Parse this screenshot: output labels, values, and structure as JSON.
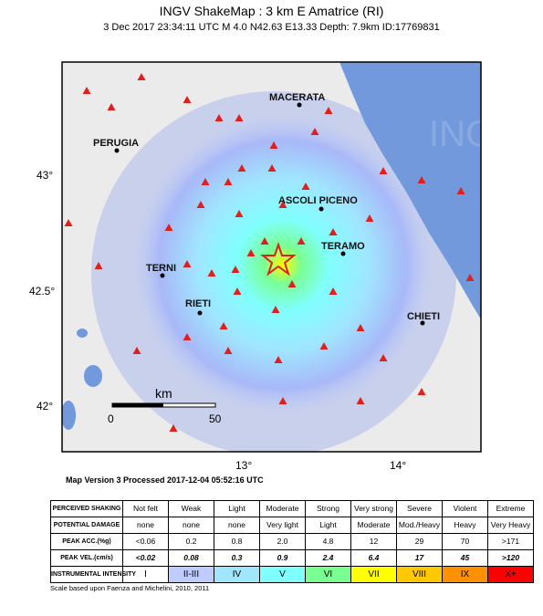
{
  "header": {
    "title": "INGV ShakeMap : 3 km E Amatrice (RI)",
    "subtitle": "3 Dec 2017 23:34:11 UTC   M 4.0   N42.63 E13.33   Depth: 7.9km   ID:17769831",
    "watermark": "INGV"
  },
  "map": {
    "cities": [
      "MACERATA",
      "PERUGIA",
      "ASCOLI PICENO",
      "TERAMO",
      "TERNI",
      "RIETI",
      "CHIETI"
    ],
    "lat_labels": [
      "43°",
      "42.5°",
      "42°"
    ],
    "lon_labels": [
      "13°",
      "14°"
    ],
    "scale": {
      "unit": "km",
      "start": "0",
      "end": "50"
    }
  },
  "table": {
    "rows": [
      {
        "label": "PERCEIVED SHAKING",
        "cells": [
          "Not felt",
          "Weak",
          "Light",
          "Moderate",
          "Strong",
          "Very strong",
          "Severe",
          "Violent",
          "Extreme"
        ]
      },
      {
        "label": "POTENTIAL DAMAGE",
        "cells": [
          "none",
          "none",
          "none",
          "Very light",
          "Light",
          "Moderate",
          "Mod./Heavy",
          "Heavy",
          "Very Heavy"
        ]
      },
      {
        "label": "PEAK ACC.(%g)",
        "cells": [
          "<0.06",
          "0.2",
          "0.8",
          "2.0",
          "4.8",
          "12",
          "29",
          "70",
          ">171"
        ]
      },
      {
        "label": "PEAK VEL.(cm/s)",
        "cells": [
          "<0.02",
          "0.08",
          "0.3",
          "0.9",
          "2.4",
          "6.4",
          "17",
          "45",
          ">120"
        ]
      },
      {
        "label": "INSTRUMENTAL INTENSITY",
        "cells": [
          "I",
          "II-III",
          "IV",
          "V",
          "VI",
          "VII",
          "VIII",
          "IX",
          "X+"
        ]
      }
    ],
    "intensity_colors": [
      "#ffffff",
      "#bfccff",
      "#a0e6ff",
      "#80ffff",
      "#7aff93",
      "#ffff00",
      "#ffc800",
      "#ff9100",
      "#ff0000"
    ]
  },
  "footer": {
    "version": "Map Version 3 Processed 2017-12-04 05:52:16 UTC",
    "note": "Scale based upon Faenza and Michelini, 2010, 2011"
  }
}
